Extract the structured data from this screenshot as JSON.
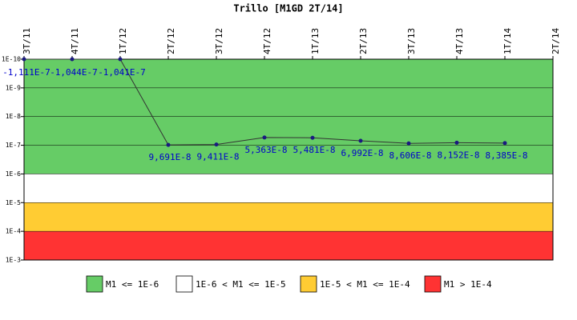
{
  "chart_data": {
    "type": "line",
    "title": "Trillo [M1GD 2T/14]",
    "categories": [
      "3T/11",
      "4T/11",
      "1T/12",
      "2T/12",
      "3T/12",
      "4T/12",
      "1T/13",
      "2T/13",
      "3T/13",
      "4T/13",
      "1T/14",
      "2T/14"
    ],
    "series": [
      {
        "name": "M1",
        "color": "#1a1a80",
        "values": [
          -1.111e-07,
          -1.044e-07,
          -1.041e-07,
          9.691e-08,
          9.411e-08,
          5.363e-08,
          5.481e-08,
          6.992e-08,
          8.606e-08,
          8.152e-08,
          8.385e-08,
          null
        ],
        "value_labels": [
          "-1,111E-7",
          "-1,044E-7",
          "-1,041E-7",
          "9,691E-8",
          "9,411E-8",
          "5,363E-8",
          "5,481E-8",
          "6,992E-8",
          "8,606E-8",
          "8,152E-8",
          "8,385E-8",
          null
        ]
      }
    ],
    "log_scale": true,
    "y_inverted": true,
    "ylim": [
      1e-10,
      0.001
    ],
    "yticks": [
      {
        "value": 1e-10,
        "label": "1E-10"
      },
      {
        "value": 1e-09,
        "label": "1E-9"
      },
      {
        "value": 1e-08,
        "label": "1E-8"
      },
      {
        "value": 1e-07,
        "label": "1E-7"
      },
      {
        "value": 1e-06,
        "label": "1E-6"
      },
      {
        "value": 1e-05,
        "label": "1E-5"
      },
      {
        "value": 0.0001,
        "label": "1E-4"
      },
      {
        "value": 0.001,
        "label": "1E-3"
      }
    ],
    "bands": [
      {
        "name": "M1 <= 1E-6",
        "color": "#66cc66",
        "from": 1e-10,
        "to": 1e-06
      },
      {
        "name": "1E-6 < M1 <= 1E-5",
        "color": "#ffffff",
        "from": 1e-06,
        "to": 1e-05
      },
      {
        "name": "1E-5 < M1 <= 1E-4",
        "color": "#ffcc33",
        "from": 1e-05,
        "to": 0.0001
      },
      {
        "name": "M1 > 1E-4",
        "color": "#ff3333",
        "from": 0.0001,
        "to": 0.001
      }
    ]
  }
}
